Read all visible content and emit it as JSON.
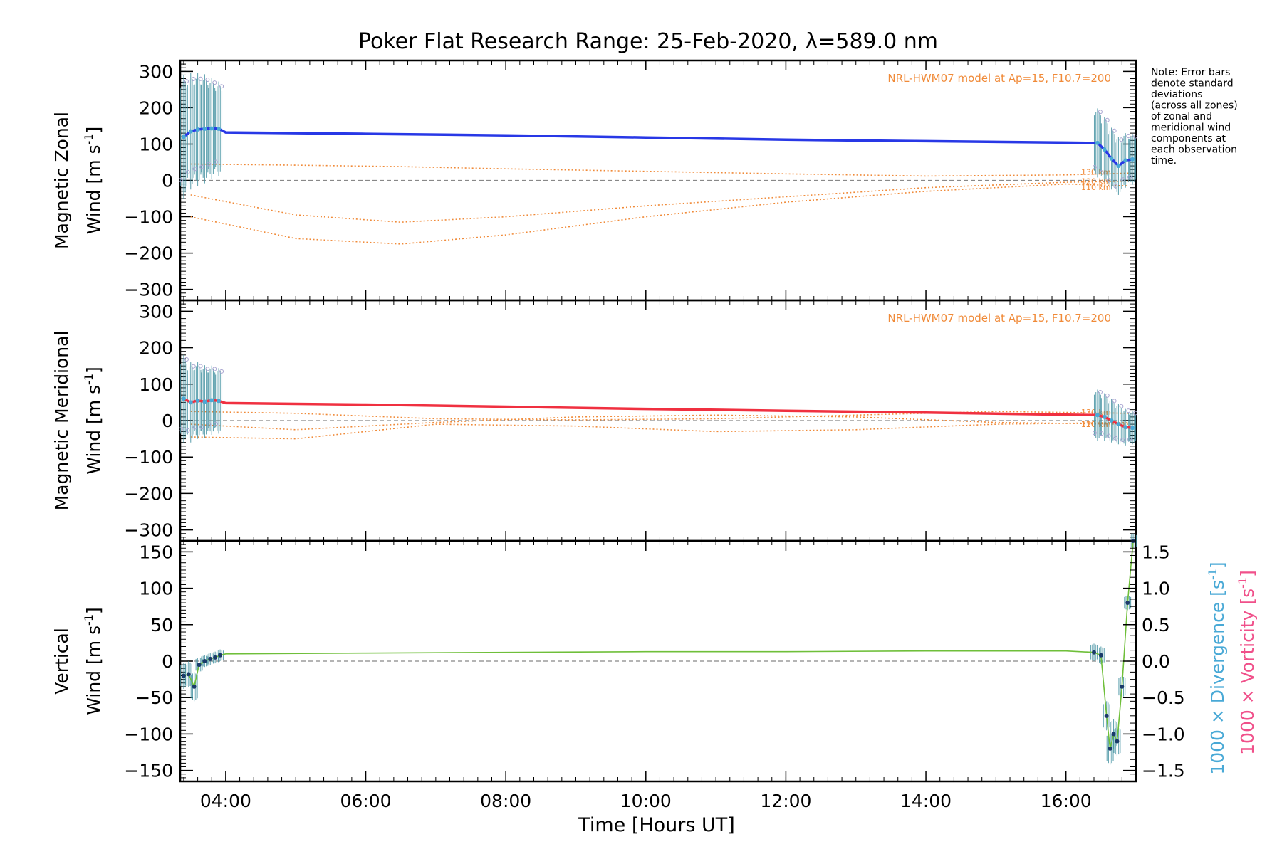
{
  "chart_data": {
    "type": "line",
    "title": "Poker Flat Research Range: 25-Feb-2020, λ=589.0 nm",
    "xlabel": "Time [Hours UT]",
    "xlim_hours": [
      3.35,
      17.0
    ],
    "xtick_labels": [
      "04:00",
      "06:00",
      "08:00",
      "10:00",
      "12:00",
      "14:00",
      "16:00"
    ],
    "xtick_hours": [
      4,
      6,
      8,
      10,
      12,
      14,
      16
    ],
    "note": [
      "Note: Error bars",
      "denote standard",
      "deviations",
      "(across all zones)",
      "of zonal and",
      "meridional wind",
      "components at",
      "each observation",
      "time."
    ],
    "model_label": "NRL-HWM07 model at Ap=15, F10.7=200",
    "altitude_labels": [
      "130 km",
      "120 km",
      "110 km"
    ],
    "colors": {
      "zonal": "#2838e6",
      "meridional": "#f03040",
      "vertical": "#6fbf3a",
      "divergence": "#49a9d6",
      "vorticity": "#f0508a",
      "model": "#f08a38",
      "scatter": "#a8a4d0",
      "error_bars": "#3f8f9f"
    },
    "panels": [
      {
        "ylabel_line1": "Magnetic Zonal",
        "ylabel_line2": "Wind [m s",
        "ylabel_sup": "-1",
        "ylabel_close": "]",
        "ylim": [
          -330,
          330
        ],
        "yticks": [
          -300,
          -200,
          -100,
          0,
          100,
          200,
          300
        ],
        "ytick_labels": [
          "−300",
          "−200",
          "−100",
          "0",
          "100",
          "200",
          "300"
        ],
        "series": [
          {
            "name": "Magnetic Zonal Wind",
            "x": [
              3.4,
              3.5,
              3.6,
              3.7,
              3.8,
              3.9,
              4.0,
              6.0,
              8.0,
              10.0,
              12.0,
              14.0,
              16.0,
              16.45,
              16.55,
              16.65,
              16.75,
              16.85,
              16.95
            ],
            "y": [
              120,
              135,
              140,
              142,
              143,
              142,
              132,
              128,
              124,
              118,
              112,
              108,
              104,
              103,
              85,
              60,
              40,
              55,
              58
            ],
            "err": [
              170,
              160,
              155,
              150,
              140,
              130,
              0,
              0,
              0,
              0,
              0,
              0,
              0,
              95,
              90,
              85,
              80,
              75,
              70
            ]
          }
        ],
        "model_curves": [
          {
            "label": "130 km",
            "x": [
              3.5,
              5.0,
              6.5,
              8.0,
              10.0,
              12.0,
              14.0,
              16.0,
              16.9
            ],
            "y": [
              45,
              42,
              38,
              32,
              25,
              18,
              12,
              15,
              20
            ]
          },
          {
            "label": "120 km",
            "x": [
              3.5,
              5.0,
              6.5,
              8.0,
              10.0,
              12.0,
              14.0,
              16.0,
              16.9
            ],
            "y": [
              -40,
              -95,
              -115,
              -100,
              -70,
              -45,
              -20,
              -5,
              -2
            ]
          },
          {
            "label": "110 km",
            "x": [
              3.5,
              5.0,
              6.5,
              8.0,
              10.0,
              12.0,
              14.0,
              16.0,
              16.9
            ],
            "y": [
              -100,
              -160,
              -175,
              -150,
              -100,
              -60,
              -30,
              -10,
              -15
            ]
          }
        ]
      },
      {
        "ylabel_line1": "Magnetic Meridional",
        "ylabel_line2": "Wind [m s",
        "ylabel_sup": "-1",
        "ylabel_close": "]",
        "ylim": [
          -330,
          330
        ],
        "yticks": [
          -300,
          -200,
          -100,
          0,
          100,
          200,
          300
        ],
        "ytick_labels": [
          "−300",
          "−200",
          "−100",
          "0",
          "100",
          "200",
          "300"
        ],
        "series": [
          {
            "name": "Magnetic Meridional Wind",
            "x": [
              3.4,
              3.5,
              3.6,
              3.7,
              3.8,
              3.9,
              4.0,
              6.0,
              8.0,
              10.0,
              12.0,
              14.0,
              16.0,
              16.45,
              16.55,
              16.65,
              16.75,
              16.85,
              16.95
            ],
            "y": [
              60,
              50,
              55,
              52,
              56,
              54,
              48,
              44,
              38,
              32,
              27,
              22,
              16,
              15,
              10,
              0,
              -10,
              -18,
              -20
            ],
            "err": [
              120,
              110,
              105,
              100,
              95,
              90,
              0,
              0,
              0,
              0,
              0,
              0,
              0,
              70,
              65,
              60,
              55,
              50,
              45
            ]
          }
        ],
        "model_curves": [
          {
            "label": "130 km",
            "x": [
              3.5,
              5.0,
              7.0,
              9.0,
              11.0,
              13.0,
              15.0,
              16.9
            ],
            "y": [
              25,
              20,
              5,
              2,
              5,
              15,
              25,
              20
            ]
          },
          {
            "label": "120 km",
            "x": [
              3.5,
              5.0,
              7.0,
              9.0,
              11.0,
              13.0,
              15.0,
              16.9
            ],
            "y": [
              -10,
              -25,
              -5,
              10,
              15,
              10,
              -5,
              -10
            ]
          },
          {
            "label": "110 km",
            "x": [
              3.5,
              5.0,
              7.0,
              9.0,
              11.0,
              13.0,
              15.0,
              16.9
            ],
            "y": [
              -45,
              -50,
              -10,
              -15,
              -30,
              -25,
              -10,
              -5
            ]
          }
        ]
      },
      {
        "ylabel_line1": "Vertical",
        "ylabel_line2": "Wind [m s",
        "ylabel_sup": "-1",
        "ylabel_close": "]",
        "ylim": [
          -165,
          165
        ],
        "yticks": [
          -150,
          -100,
          -50,
          0,
          50,
          100,
          150
        ],
        "ytick_labels": [
          "−150",
          "−100",
          "−50",
          "0",
          "50",
          "100",
          "150"
        ],
        "y2label_div": "1000 × Divergence [s",
        "y2label_vort": "1000 × Vorticity [s",
        "y2label_sup": "-1",
        "y2label_close": "]",
        "y2lim": [
          -1.65,
          1.65
        ],
        "y2ticks": [
          -1.5,
          -1.0,
          -0.5,
          0.0,
          0.5,
          1.0,
          1.5
        ],
        "y2tick_labels": [
          "−1.5",
          "−1.0",
          "−0.5",
          "0.0",
          "0.5",
          "1.0",
          "1.5"
        ],
        "series": [
          {
            "name": "Vertical Wind",
            "x": [
              3.4,
              3.47,
              3.55,
              3.62,
              3.7,
              3.78,
              3.85,
              3.92,
              4.0,
              6.0,
              8.0,
              10.0,
              12.0,
              14.0,
              16.0,
              16.4,
              16.5,
              16.58,
              16.63,
              16.68,
              16.73,
              16.8,
              16.88,
              16.96
            ],
            "y": [
              -20,
              -18,
              -35,
              -5,
              0,
              3,
              5,
              8,
              10,
              11,
              12,
              13,
              13,
              14,
              14,
              12,
              8,
              -75,
              -120,
              -100,
              -110,
              -35,
              80,
              165
            ],
            "err": [
              18,
              18,
              20,
              10,
              8,
              8,
              8,
              8,
              0,
              0,
              0,
              0,
              0,
              0,
              0,
              12,
              12,
              20,
              22,
              20,
              20,
              15,
              10,
              10
            ]
          }
        ]
      }
    ]
  }
}
